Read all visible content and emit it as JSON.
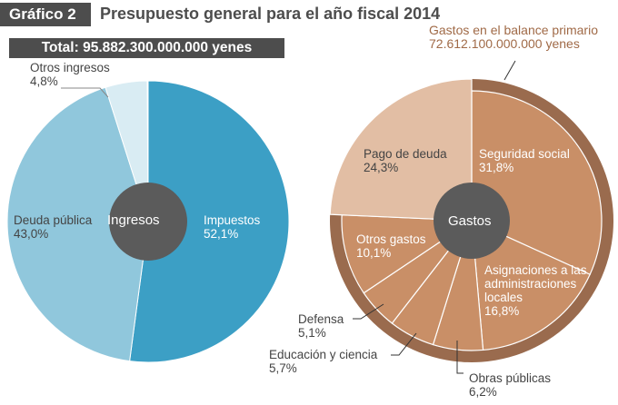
{
  "header": {
    "badge": "Gráfico 2",
    "title": "Presupuesto general para el año fiscal 2014"
  },
  "chart_data": [
    {
      "type": "pie",
      "title": "Total: 95.882.300.000.000 yenes",
      "center_label": "Ingresos",
      "slices": [
        {
          "name": "Impuestos",
          "value": 52.1,
          "label": "52,1%",
          "color": "#3c9fc5"
        },
        {
          "name": "Deuda pública",
          "value": 43.0,
          "label": "43,0%",
          "color": "#90c7dc"
        },
        {
          "name": "Otros ingresos",
          "value": 4.8,
          "label": "4,8%",
          "color": "#d9ecf3"
        }
      ]
    },
    {
      "type": "pie",
      "center_label": "Gastos",
      "ring": {
        "label": "Gastos en el balance primario",
        "value_text": "72.612.100.000.000 yenes",
        "color": "#9a6b4e"
      },
      "slices": [
        {
          "name": "Seguridad social",
          "value": 31.8,
          "label": "31,8%",
          "color": "#c98f67"
        },
        {
          "name": "Asignaciones a las administraciones locales",
          "value": 16.8,
          "label": "16,8%",
          "color": "#c98f67"
        },
        {
          "name": "Obras públicas",
          "value": 6.2,
          "label": "6,2%",
          "color": "#c98f67"
        },
        {
          "name": "Educación y ciencia",
          "value": 5.7,
          "label": "5,7%",
          "color": "#c98f67"
        },
        {
          "name": "Defensa",
          "value": 5.1,
          "label": "5,1%",
          "color": "#c98f67"
        },
        {
          "name": "Otros gastos",
          "value": 10.1,
          "label": "10,1%",
          "color": "#c98f67"
        },
        {
          "name": "Pago de deuda",
          "value": 24.3,
          "label": "24,3%",
          "color": "#e2bea4"
        }
      ]
    }
  ]
}
